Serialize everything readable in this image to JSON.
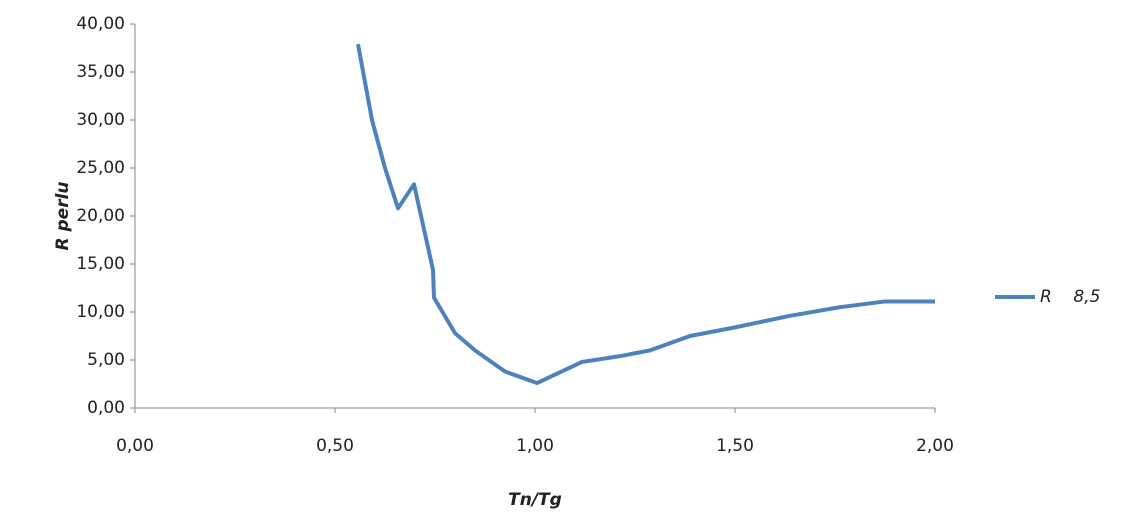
{
  "chart_data": {
    "type": "line",
    "x_label": "Tn/Tg",
    "y_label": "R perlu",
    "x": [
      0.5575,
      0.5925,
      0.625,
      0.6575,
      0.6975,
      0.745,
      0.7475,
      0.8,
      0.85,
      0.925,
      1.005,
      1.1175,
      1.2125,
      1.2875,
      1.3875,
      1.5,
      1.6375,
      1.7625,
      1.875,
      2.0
    ],
    "series": [
      {
        "name": "R    8,5",
        "color": "#4f81bd",
        "values": [
          37.9,
          30.0,
          25.0,
          20.8,
          23.3,
          14.4,
          11.5,
          7.8,
          6.0,
          3.8,
          2.6,
          4.8,
          5.4,
          6.0,
          7.5,
          8.4,
          9.6,
          10.5,
          11.1,
          11.1
        ]
      }
    ],
    "xlim": [
      0,
      2
    ],
    "ylim": [
      0,
      40
    ],
    "xticks": [
      {
        "value": 0,
        "label": "0,00"
      },
      {
        "value": 0.5,
        "label": "0,50"
      },
      {
        "value": 1,
        "label": "1,00"
      },
      {
        "value": 1.5,
        "label": "1,50"
      },
      {
        "value": 2,
        "label": "2,00"
      }
    ],
    "yticks": [
      {
        "value": 0,
        "label": "0,00"
      },
      {
        "value": 5,
        "label": "5,00"
      },
      {
        "value": 10,
        "label": "10,00"
      },
      {
        "value": 15,
        "label": "15,00"
      },
      {
        "value": 20,
        "label": "20,00"
      },
      {
        "value": 25,
        "label": "25,00"
      },
      {
        "value": 30,
        "label": "30,00"
      },
      {
        "value": 35,
        "label": "35,00"
      },
      {
        "value": 40,
        "label": "40,00"
      }
    ],
    "grid": false,
    "legend": "right"
  }
}
